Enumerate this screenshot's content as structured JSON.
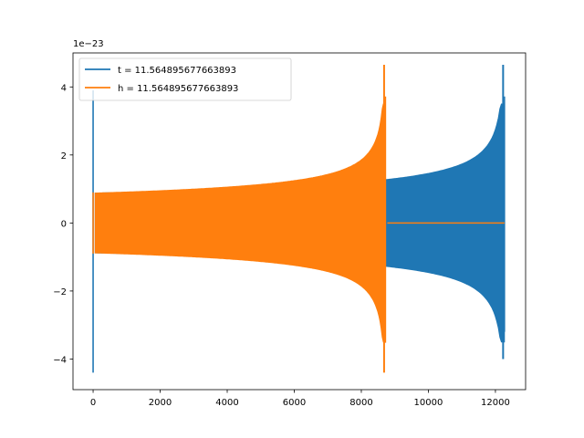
{
  "chart_data": {
    "type": "line",
    "title": "",
    "xlabel": "",
    "ylabel": "",
    "y_offset_text": "1e−23",
    "xlim": [
      -600,
      12900
    ],
    "ylim": [
      -4.9,
      5.0
    ],
    "x_ticks": [
      0,
      2000,
      4000,
      6000,
      8000,
      10000,
      12000
    ],
    "x_tick_labels": [
      "0",
      "2000",
      "4000",
      "6000",
      "8000",
      "10000",
      "12000"
    ],
    "y_ticks": [
      -4,
      -2,
      0,
      2,
      4
    ],
    "y_tick_labels": [
      "−4",
      "−2",
      "0",
      "2",
      "4"
    ],
    "grid": false,
    "legend_position": "top-left",
    "series": [
      {
        "name": "t = 11.564895677663893",
        "color": "#1f77b4",
        "kind": "chirp",
        "x_start": 0,
        "x_end": 12270,
        "envelope_start": 0.88,
        "envelope_before_merger": 3.5,
        "peak_max": 4.65,
        "peak_min": -4.0,
        "start_spike_max": 3.9,
        "start_spike_min": -4.4,
        "after_merger": 0.0
      },
      {
        "name": "h = 11.564895677663893",
        "color": "#ff7f0e",
        "kind": "chirp",
        "x_start": 0,
        "x_end": 8720,
        "tail_end": 12270,
        "envelope_start": 0.88,
        "envelope_before_merger": 3.5,
        "peak_max": 4.65,
        "peak_min": -4.4,
        "start_spike_max": 0.9,
        "start_spike_min": -0.9,
        "after_merger": 0.0
      }
    ]
  }
}
